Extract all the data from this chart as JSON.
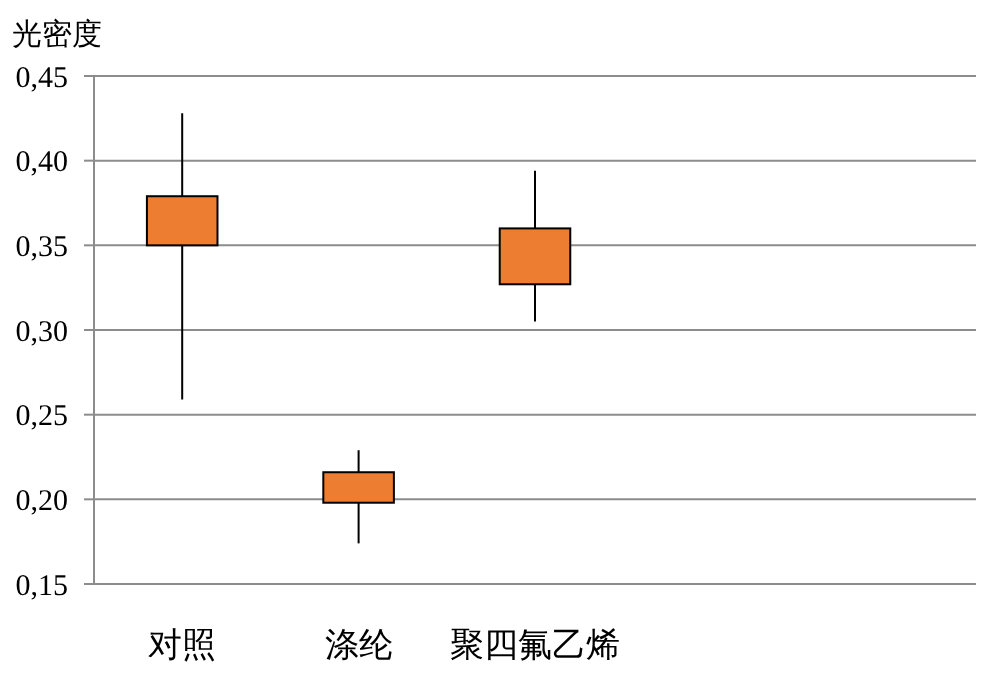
{
  "chart_data": {
    "type": "candlestick",
    "ylabel": "光密度",
    "categories": [
      "对照",
      "涤纶",
      "聚四氟乙烯",
      null,
      null
    ],
    "ohlc": [
      [
        0.35,
        0.428,
        0.259,
        0.379
      ],
      [
        0.198,
        0.229,
        0.174,
        0.216
      ],
      [
        0.327,
        0.394,
        0.305,
        0.36
      ],
      null,
      null
    ],
    "color": "#ed7d31",
    "ylim": [
      0.15,
      0.45
    ],
    "yticks": [
      {
        "value": 0.15,
        "label": "0,15"
      },
      {
        "value": 0.2,
        "label": "0,20"
      },
      {
        "value": 0.25,
        "label": "0,25"
      },
      {
        "value": 0.3,
        "label": "0,30"
      },
      {
        "value": 0.35,
        "label": "0,35"
      },
      {
        "value": 0.4,
        "label": "0,40"
      },
      {
        "value": 0.45,
        "label": "0,45"
      }
    ],
    "grid": "y"
  }
}
